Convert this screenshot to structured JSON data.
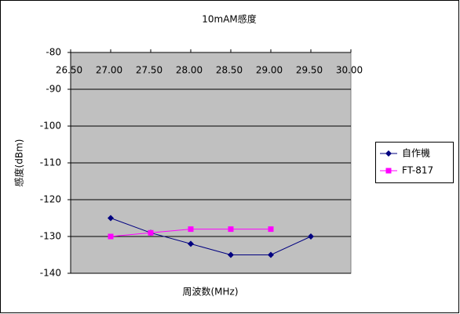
{
  "chart_data": {
    "type": "line",
    "title": "10mAM感度",
    "x_label": "周波数(MHz)",
    "y_label": "感度(dBm)",
    "x": [
      27.0,
      27.5,
      28.0,
      28.5,
      29.0,
      29.5
    ],
    "series": [
      {
        "name": "自作機",
        "color": "#000080",
        "marker": "diamond",
        "values": [
          -125,
          -129,
          -132,
          -135,
          -135,
          -130
        ]
      },
      {
        "name": "FT-817",
        "color": "#ff00ff",
        "marker": "square",
        "values": [
          -130,
          -129,
          -128,
          -128,
          -128,
          null
        ]
      }
    ],
    "xlim": [
      26.5,
      30.0
    ],
    "xticks": [
      {
        "value": 26.5,
        "label": "26.50"
      },
      {
        "value": 27.0,
        "label": "27.00"
      },
      {
        "value": 27.5,
        "label": "27.50"
      },
      {
        "value": 28.0,
        "label": "28.00"
      },
      {
        "value": 28.5,
        "label": "28.50"
      },
      {
        "value": 29.0,
        "label": "29.00"
      },
      {
        "value": 29.5,
        "label": "29.50"
      },
      {
        "value": 30.0,
        "label": "30.00"
      }
    ],
    "ylim": [
      -140,
      -80
    ],
    "yticks": [
      -80,
      -90,
      -100,
      -110,
      -120,
      -130,
      -140
    ],
    "grid": true,
    "plot_background": "#c0c0c0",
    "legend": "right"
  }
}
